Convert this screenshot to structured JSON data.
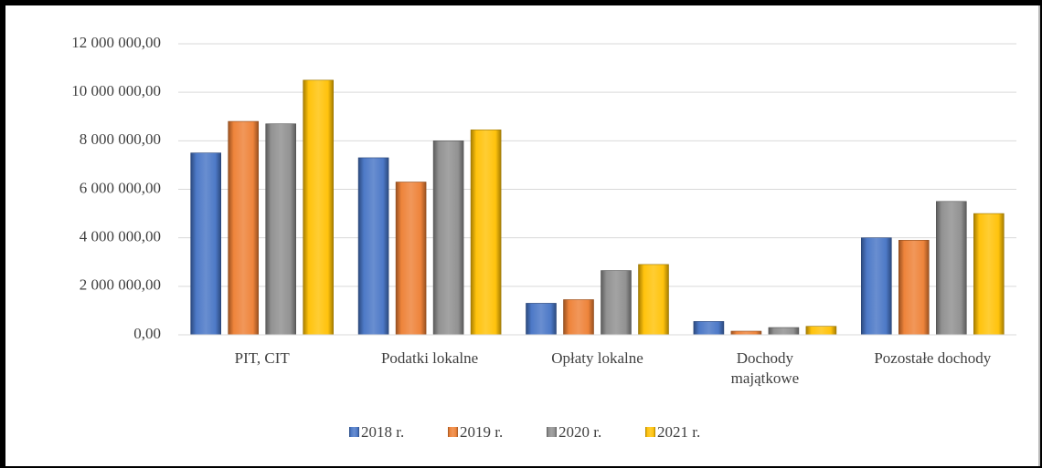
{
  "chart_data": {
    "type": "bar",
    "categories": [
      "PIT, CIT",
      "Podatki lokalne",
      "Opłaty lokalne",
      "Dochody\nmajątkowe",
      "Pozostałe dochody"
    ],
    "series": [
      {
        "name": "2018 r.",
        "color": "#4472c4",
        "values": [
          7500000,
          7300000,
          1300000,
          550000,
          4000000
        ]
      },
      {
        "name": "2019 r.",
        "color": "#ed7d31",
        "values": [
          8800000,
          6300000,
          1450000,
          150000,
          3900000
        ]
      },
      {
        "name": "2020 r.",
        "color": "#8c8c8c",
        "values": [
          8700000,
          8000000,
          2650000,
          300000,
          5500000
        ]
      },
      {
        "name": "2021 r.",
        "color": "#ffc000",
        "values": [
          10500000,
          8450000,
          2900000,
          350000,
          5000000
        ]
      }
    ],
    "ylim": [
      0,
      12000000
    ],
    "yticks": [
      {
        "value": 0,
        "label": "0,00"
      },
      {
        "value": 2000000,
        "label": "2 000 000,00"
      },
      {
        "value": 4000000,
        "label": "4 000 000,00"
      },
      {
        "value": 6000000,
        "label": "6 000 000,00"
      },
      {
        "value": 8000000,
        "label": "8 000 000,00"
      },
      {
        "value": 10000000,
        "label": "10 000 000,00"
      },
      {
        "value": 12000000,
        "label": "12 000 000,00"
      }
    ],
    "grid": true,
    "legend": "bottom"
  }
}
